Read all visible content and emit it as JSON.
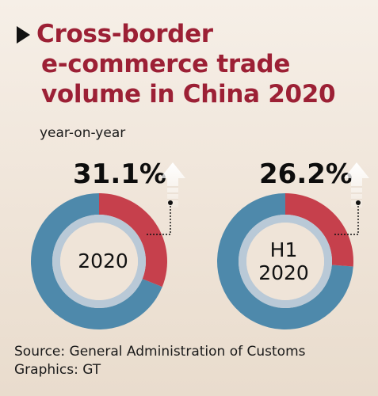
{
  "header": {
    "title_lines": [
      "Cross-border",
      "e-commerce trade",
      "volume in China 2020"
    ],
    "subtitle": "year-on-year"
  },
  "chart_data": [
    {
      "type": "pie",
      "center_label_lines": [
        "2020"
      ],
      "value_label": "31.1%",
      "values": [
        31.1
      ],
      "colors": {
        "highlight": "#c6404c",
        "rest": "#4e89ab",
        "inner_ring": "#b9c9d7"
      }
    },
    {
      "type": "pie",
      "center_label_lines": [
        "H1",
        "2020"
      ],
      "value_label": "26.2%",
      "values": [
        26.2
      ],
      "colors": {
        "highlight": "#c6404c",
        "rest": "#4e89ab",
        "inner_ring": "#b9c9d7"
      }
    }
  ],
  "footer": {
    "source": "Source: General Administration of Customs",
    "graphics": "Graphics: GT"
  },
  "icons": [
    "title-triangle-icon",
    "up-arrow-icon"
  ]
}
